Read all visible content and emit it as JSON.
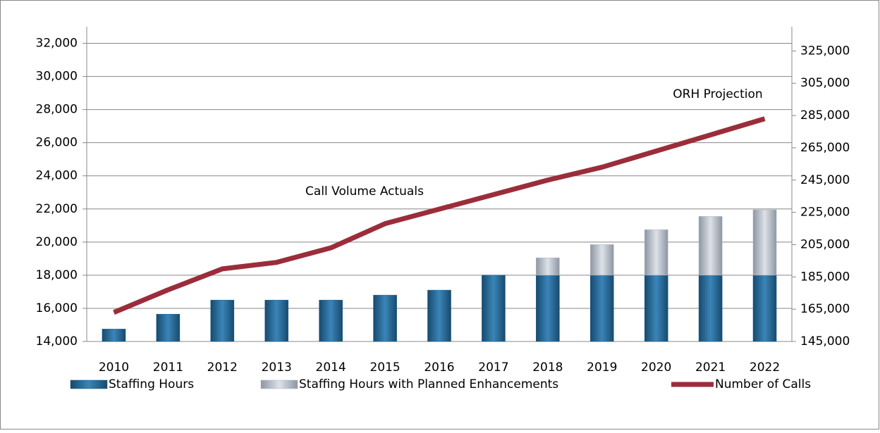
{
  "chart_data": {
    "type": "bar-line",
    "categories": [
      "2010",
      "2011",
      "2012",
      "2013",
      "2014",
      "2015",
      "2016",
      "2017",
      "2018",
      "2019",
      "2020",
      "2021",
      "2022"
    ],
    "series": [
      {
        "name": "Staffing Hours",
        "color": "#1f5f8b",
        "values": [
          14750,
          15650,
          16500,
          16500,
          16500,
          16800,
          17100,
          18000,
          18000,
          18000,
          18000,
          18000,
          18000
        ]
      },
      {
        "name": "Staffing Hours with Planned Enhancements",
        "color": "#aeb6c2",
        "values": [
          0,
          0,
          0,
          0,
          0,
          0,
          0,
          0,
          1050,
          1850,
          2750,
          3550,
          3950
        ]
      },
      {
        "name": "Number of Calls",
        "color": "#9b2d3a",
        "axis": "y2",
        "values": [
          163000,
          177000,
          190000,
          194000,
          203000,
          218000,
          227000,
          236000,
          245000,
          253000,
          263000,
          273000,
          283000
        ]
      }
    ],
    "ylim": [
      14000,
      33000
    ],
    "yticks": [
      {
        "value": 14000,
        "label": "14,000"
      },
      {
        "value": 16000,
        "label": "16,000"
      },
      {
        "value": 18000,
        "label": "18,000"
      },
      {
        "value": 20000,
        "label": "20,000"
      },
      {
        "value": 22000,
        "label": "22,000"
      },
      {
        "value": 24000,
        "label": "24,000"
      },
      {
        "value": 26000,
        "label": "26,000"
      },
      {
        "value": 28000,
        "label": "28,000"
      },
      {
        "value": 30000,
        "label": "30,000"
      },
      {
        "value": 32000,
        "label": "32,000"
      }
    ],
    "y2lim": [
      145000,
      340000
    ],
    "y2ticks": [
      {
        "value": 145000,
        "label": "145,000"
      },
      {
        "value": 165000,
        "label": "165,000"
      },
      {
        "value": 185000,
        "label": "185,000"
      },
      {
        "value": 205000,
        "label": "205,000"
      },
      {
        "value": 225000,
        "label": "225,000"
      },
      {
        "value": 245000,
        "label": "245,000"
      },
      {
        "value": 265000,
        "label": "265,000"
      },
      {
        "value": 285000,
        "label": "285,000"
      },
      {
        "value": 305000,
        "label": "305,000"
      },
      {
        "value": 325000,
        "label": "325,000"
      }
    ],
    "annotations": [
      "Call Volume Actuals",
      "ORH Projection"
    ],
    "grid": true
  }
}
